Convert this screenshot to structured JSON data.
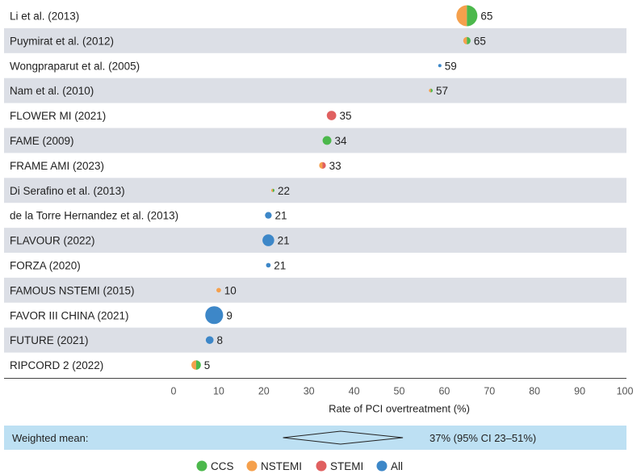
{
  "chart_data": {
    "type": "scatter",
    "subtype": "forest-dot-plot",
    "xlabel": "Rate of PCI overtreatment (%)",
    "xlim": [
      0,
      100
    ],
    "xticks": [
      0,
      10,
      20,
      30,
      40,
      50,
      60,
      70,
      80,
      90,
      100
    ],
    "colors": {
      "CCS": "#4cb84c",
      "NSTEMI": "#f5a04c",
      "STEMI": "#e06060",
      "All": "#3d87c8"
    },
    "row_shading": "#dcdfe6",
    "studies": [
      {
        "label": "Li et al. (2013)",
        "value": 65,
        "relative_size": 1.0,
        "groups": [
          "NSTEMI",
          "CCS"
        ]
      },
      {
        "label": "Puymirat et al. (2012)",
        "value": 65,
        "relative_size": 0.35,
        "groups": [
          "NSTEMI",
          "CCS"
        ]
      },
      {
        "label": "Wongpraparut et al. (2005)",
        "value": 59,
        "relative_size": 0.1,
        "groups": [
          "All"
        ]
      },
      {
        "label": "Nam et al. (2010)",
        "value": 57,
        "relative_size": 0.18,
        "groups": [
          "NSTEMI",
          "CCS"
        ]
      },
      {
        "label": "FLOWER MI (2021)",
        "value": 35,
        "relative_size": 0.45,
        "groups": [
          "STEMI"
        ]
      },
      {
        "label": "FAME (2009)",
        "value": 34,
        "relative_size": 0.42,
        "groups": [
          "CCS"
        ]
      },
      {
        "label": "FRAME AMI (2023)",
        "value": 33,
        "relative_size": 0.32,
        "groups": [
          "NSTEMI",
          "STEMI"
        ]
      },
      {
        "label": "Di Serafino et al. (2013)",
        "value": 22,
        "relative_size": 0.15,
        "groups": [
          "NSTEMI",
          "CCS"
        ]
      },
      {
        "label": "de la Torre Hernandez et al. (2013)",
        "value": 21,
        "relative_size": 0.32,
        "groups": [
          "All"
        ]
      },
      {
        "label": "FLAVOUR (2022)",
        "value": 21,
        "relative_size": 0.56,
        "groups": [
          "All"
        ]
      },
      {
        "label": "FORZA (2020)",
        "value": 21,
        "relative_size": 0.22,
        "groups": [
          "All"
        ]
      },
      {
        "label": "FAMOUS NSTEMI (2015)",
        "value": 10,
        "relative_size": 0.22,
        "groups": [
          "NSTEMI"
        ]
      },
      {
        "label": "FAVOR III CHINA (2021)",
        "value": 9,
        "relative_size": 0.85,
        "groups": [
          "All"
        ]
      },
      {
        "label": "FUTURE (2021)",
        "value": 8,
        "relative_size": 0.37,
        "groups": [
          "All"
        ]
      },
      {
        "label": "RIPCORD 2 (2022)",
        "value": 5,
        "relative_size": 0.45,
        "groups": [
          "NSTEMI",
          "CCS"
        ]
      }
    ],
    "weighted_mean": {
      "label": "Weighted mean:",
      "value": 37,
      "ci_low": 23,
      "ci_high": 51,
      "text": "37% (95% CI 23–51%)",
      "band_color": "#bde0f3"
    },
    "legend": [
      {
        "key": "CCS",
        "label": "CCS"
      },
      {
        "key": "NSTEMI",
        "label": "NSTEMI"
      },
      {
        "key": "STEMI",
        "label": "STEMI"
      },
      {
        "key": "All",
        "label": "All"
      }
    ]
  }
}
